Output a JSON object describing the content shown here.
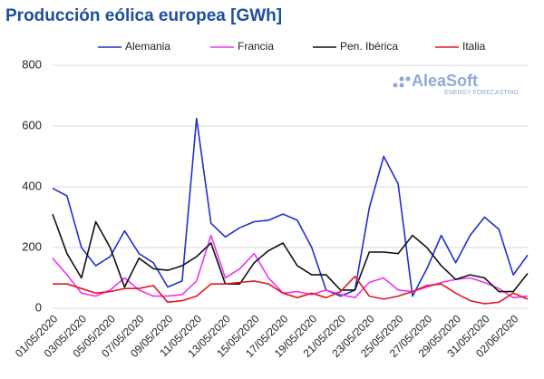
{
  "chart_data": {
    "type": "line",
    "title": "Producción eólica europea [GWh]",
    "logo": {
      "name": "AleaSoft",
      "tagline": "ENERGY FORECASTING"
    },
    "categories": [
      "01/05/2020",
      null,
      "03/05/2020",
      null,
      "05/05/2020",
      null,
      "07/05/2020",
      null,
      "09/05/2020",
      null,
      "11/05/2020",
      null,
      "13/05/2020",
      null,
      "15/05/2020",
      null,
      "17/05/2020",
      null,
      "19/05/2020",
      null,
      "21/05/2020",
      null,
      "23/05/2020",
      null,
      "25/05/2020",
      null,
      "27/05/2020",
      null,
      "29/05/2020",
      null,
      "31/05/2020",
      null,
      "02/06/2020",
      null
    ],
    "series": [
      {
        "name": "Alemania",
        "color": "#1f2fd0",
        "values": [
          395,
          370,
          200,
          140,
          170,
          255,
          180,
          150,
          70,
          90,
          625,
          280,
          235,
          265,
          285,
          290,
          310,
          290,
          200,
          60,
          40,
          60,
          330,
          500,
          410,
          40,
          130,
          240,
          150,
          240,
          300,
          260,
          110,
          175
        ]
      },
      {
        "name": "Francia",
        "color": "#f032f0",
        "values": [
          165,
          110,
          50,
          40,
          60,
          100,
          60,
          40,
          40,
          45,
          90,
          240,
          100,
          130,
          180,
          100,
          50,
          55,
          45,
          60,
          45,
          35,
          85,
          100,
          60,
          55,
          70,
          85,
          95,
          100,
          85,
          65,
          35,
          40
        ]
      },
      {
        "name": "Pen. Ibérica",
        "color": "#111111",
        "values": [
          310,
          180,
          100,
          285,
          200,
          70,
          165,
          130,
          125,
          140,
          170,
          215,
          80,
          80,
          150,
          190,
          215,
          140,
          110,
          110,
          60,
          60,
          185,
          185,
          180,
          240,
          200,
          140,
          95,
          110,
          100,
          55,
          55,
          115
        ]
      },
      {
        "name": "Italia",
        "color": "#e8141e",
        "values": [
          80,
          80,
          65,
          50,
          55,
          65,
          65,
          75,
          20,
          25,
          40,
          80,
          80,
          85,
          90,
          80,
          50,
          35,
          50,
          35,
          55,
          105,
          40,
          30,
          40,
          55,
          75,
          80,
          50,
          25,
          15,
          20,
          50,
          30
        ]
      }
    ],
    "ylim": [
      0,
      800
    ],
    "yticks": [
      0,
      200,
      400,
      600,
      800
    ],
    "grid": true,
    "legend": "top"
  }
}
